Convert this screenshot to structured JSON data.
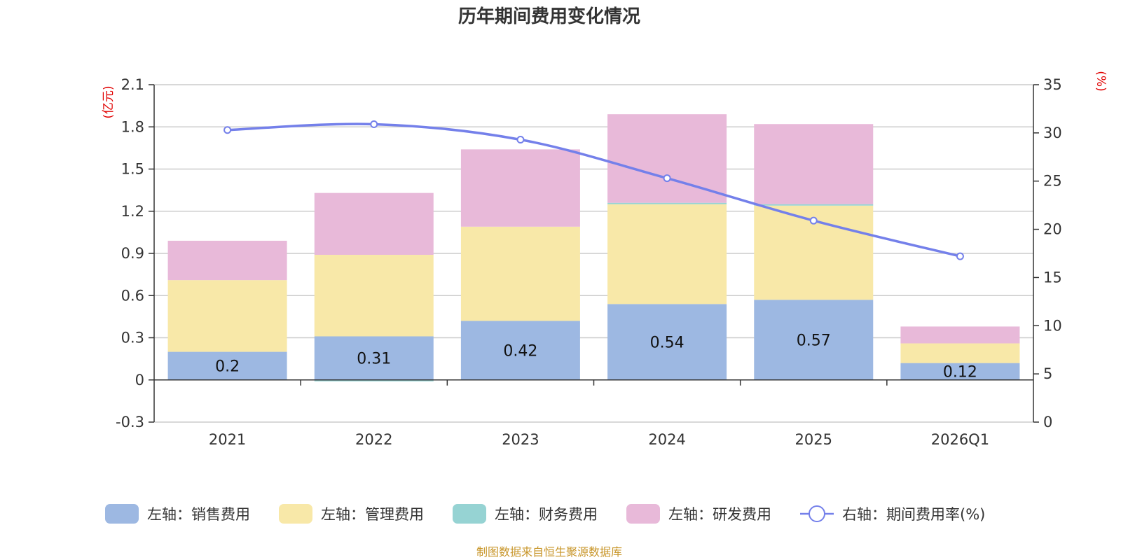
{
  "chart_data": {
    "type": "bar",
    "title": "历年期间费用变化情况",
    "categories": [
      "2021",
      "2022",
      "2023",
      "2024",
      "2025",
      "2026Q1"
    ],
    "series": [
      {
        "name": "左轴：销售费用",
        "axis": "left",
        "stack": true,
        "color": "#9db8e2",
        "values": [
          0.2,
          0.31,
          0.42,
          0.54,
          0.57,
          0.12
        ],
        "labels": [
          "0.2",
          "0.31",
          "0.42",
          "0.54",
          "0.57",
          "0.12"
        ]
      },
      {
        "name": "左轴：管理费用",
        "axis": "left",
        "stack": true,
        "color": "#f8e8a8",
        "values": [
          0.51,
          0.58,
          0.67,
          0.71,
          0.67,
          0.14
        ]
      },
      {
        "name": "左轴：财务费用",
        "axis": "left",
        "stack": true,
        "color": "#96d3d3",
        "values": [
          0.0,
          -0.01,
          0.0,
          0.01,
          0.01,
          0.0
        ]
      },
      {
        "name": "左轴：研发费用",
        "axis": "left",
        "stack": true,
        "color": "#e8b9d9",
        "values": [
          0.28,
          0.44,
          0.55,
          0.63,
          0.57,
          0.12
        ]
      },
      {
        "name": "右轴：期间费用率(%)",
        "axis": "right",
        "type": "line",
        "color": "#7480ea",
        "values": [
          30.3,
          30.9,
          29.3,
          25.3,
          20.9,
          17.2
        ]
      }
    ],
    "left_axis": {
      "unit": "(亿元)",
      "ylim": [
        -0.3,
        2.1
      ],
      "ticks": [
        "-0.3",
        "0",
        "0.3",
        "0.6",
        "0.9",
        "1.2",
        "1.5",
        "1.8",
        "2.1"
      ]
    },
    "right_axis": {
      "unit": "(%)",
      "ylim": [
        0,
        35
      ],
      "ticks": [
        "0",
        "5",
        "10",
        "15",
        "20",
        "25",
        "30",
        "35"
      ]
    },
    "legend_position": "bottom",
    "source": "制图数据来自恒生聚源数据库"
  }
}
